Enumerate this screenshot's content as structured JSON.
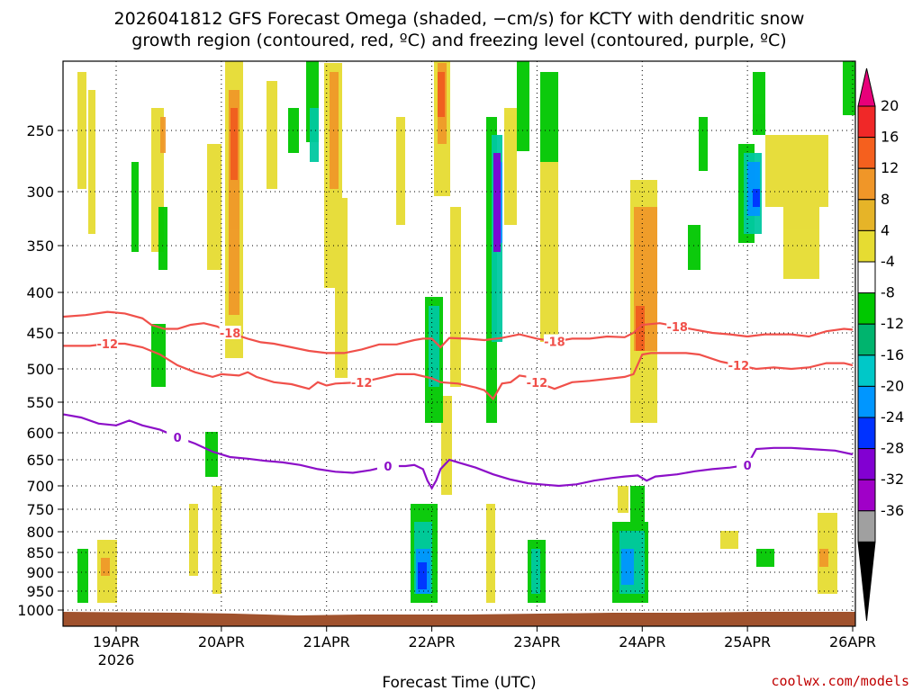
{
  "title_lines": [
    "2026041812 GFS Forecast Omega (shaded, −cm/s) for KCTY with dendritic snow",
    "growth region (contoured, red, ºC) and freezing level (contoured, purple, ºC)"
  ],
  "xlabel": "Forecast Time (UTC)",
  "credit": "coolwx.com/models",
  "chart_data": {
    "type": "heatmap",
    "x_ticks": [
      {
        "label": "19APR",
        "sub": "2026",
        "t": 12
      },
      {
        "label": "20APR",
        "sub": "",
        "t": 36
      },
      {
        "label": "21APR",
        "sub": "",
        "t": 60
      },
      {
        "label": "22APR",
        "sub": "",
        "t": 84
      },
      {
        "label": "23APR",
        "sub": "",
        "t": 108
      },
      {
        "label": "24APR",
        "sub": "",
        "t": 132
      },
      {
        "label": "25APR",
        "sub": "",
        "t": 156
      },
      {
        "label": "26APR",
        "sub": "",
        "t": 180
      }
    ],
    "x_range_hours": [
      0,
      180
    ],
    "y_pressure_levels": [
      250,
      300,
      350,
      400,
      450,
      500,
      550,
      600,
      650,
      700,
      750,
      800,
      850,
      900,
      950,
      1000
    ],
    "y_grid": true,
    "colorbar": {
      "labels": [
        "20",
        "16",
        "12",
        "8",
        "4",
        "-4",
        "-8",
        "-12",
        "-16",
        "-20",
        "-24",
        "-28",
        "-32",
        "-36"
      ],
      "colors": [
        "#e8007a",
        "#f02828",
        "#f5601e",
        "#f09628",
        "#e6b428",
        "#e6dc32",
        "#ffffff",
        "#00c800",
        "#00b46e",
        "#00c8c8",
        "#0096ff",
        "#0032ff",
        "#8200d2",
        "#a000c8",
        "#a0a0a0",
        "#000000"
      ]
    },
    "contours": [
      {
        "name": "-18",
        "color": "#f0504a",
        "label_hours": [
          40,
          112,
          139
        ],
        "points": [
          [
            0,
            430
          ],
          [
            5,
            428
          ],
          [
            10,
            424
          ],
          [
            14,
            426
          ],
          [
            18,
            432
          ],
          [
            20,
            440
          ],
          [
            23,
            445
          ],
          [
            26,
            445
          ],
          [
            29,
            440
          ],
          [
            32,
            438
          ],
          [
            35,
            442
          ],
          [
            38,
            450
          ],
          [
            42,
            458
          ],
          [
            45,
            463
          ],
          [
            48,
            465
          ],
          [
            52,
            470
          ],
          [
            56,
            475
          ],
          [
            60,
            478
          ],
          [
            64,
            478
          ],
          [
            68,
            473
          ],
          [
            72,
            466
          ],
          [
            76,
            466
          ],
          [
            80,
            460
          ],
          [
            82,
            458
          ],
          [
            84,
            458
          ],
          [
            86,
            470
          ],
          [
            88,
            457
          ],
          [
            92,
            458
          ],
          [
            96,
            460
          ],
          [
            100,
            457
          ],
          [
            104,
            452
          ],
          [
            108,
            458
          ],
          [
            112,
            462
          ],
          [
            116,
            458
          ],
          [
            120,
            458
          ],
          [
            124,
            455
          ],
          [
            128,
            456
          ],
          [
            130,
            450
          ],
          [
            132,
            440
          ],
          [
            136,
            438
          ],
          [
            140,
            442
          ],
          [
            144,
            446
          ],
          [
            148,
            450
          ],
          [
            152,
            452
          ],
          [
            156,
            455
          ],
          [
            160,
            452
          ],
          [
            166,
            452
          ],
          [
            170,
            455
          ],
          [
            174,
            448
          ],
          [
            178,
            445
          ],
          [
            180,
            446
          ]
        ]
      },
      {
        "name": "-12",
        "color": "#f0504a",
        "label_hours": [
          12,
          66,
          108,
          155
        ],
        "points": [
          [
            0,
            468
          ],
          [
            6,
            468
          ],
          [
            10,
            465
          ],
          [
            14,
            465
          ],
          [
            18,
            470
          ],
          [
            22,
            480
          ],
          [
            26,
            495
          ],
          [
            30,
            505
          ],
          [
            34,
            512
          ],
          [
            36,
            508
          ],
          [
            40,
            510
          ],
          [
            42,
            505
          ],
          [
            44,
            512
          ],
          [
            48,
            520
          ],
          [
            52,
            523
          ],
          [
            56,
            530
          ],
          [
            58,
            520
          ],
          [
            60,
            525
          ],
          [
            62,
            522
          ],
          [
            68,
            520
          ],
          [
            72,
            514
          ],
          [
            76,
            508
          ],
          [
            80,
            508
          ],
          [
            84,
            514
          ],
          [
            86,
            520
          ],
          [
            90,
            522
          ],
          [
            94,
            528
          ],
          [
            96,
            532
          ],
          [
            98,
            545
          ],
          [
            100,
            522
          ],
          [
            102,
            520
          ],
          [
            104,
            510
          ],
          [
            106,
            512
          ],
          [
            108,
            520
          ],
          [
            112,
            530
          ],
          [
            116,
            520
          ],
          [
            120,
            518
          ],
          [
            124,
            515
          ],
          [
            128,
            512
          ],
          [
            130,
            508
          ],
          [
            132,
            480
          ],
          [
            134,
            478
          ],
          [
            138,
            478
          ],
          [
            142,
            478
          ],
          [
            145,
            480
          ],
          [
            150,
            490
          ],
          [
            154,
            495
          ],
          [
            158,
            500
          ],
          [
            162,
            498
          ],
          [
            166,
            500
          ],
          [
            170,
            498
          ],
          [
            174,
            492
          ],
          [
            178,
            492
          ],
          [
            180,
            495
          ]
        ]
      },
      {
        "name": "0",
        "color": "#8c0fc8",
        "label_hours": [
          26,
          74,
          155
        ],
        "points": [
          [
            0,
            570
          ],
          [
            4,
            575
          ],
          [
            8,
            585
          ],
          [
            12,
            588
          ],
          [
            15,
            580
          ],
          [
            18,
            588
          ],
          [
            22,
            595
          ],
          [
            26,
            608
          ],
          [
            30,
            620
          ],
          [
            34,
            635
          ],
          [
            38,
            645
          ],
          [
            42,
            648
          ],
          [
            46,
            652
          ],
          [
            50,
            655
          ],
          [
            54,
            660
          ],
          [
            58,
            668
          ],
          [
            62,
            673
          ],
          [
            66,
            675
          ],
          [
            70,
            670
          ],
          [
            74,
            662
          ],
          [
            78,
            662
          ],
          [
            80,
            660
          ],
          [
            82,
            668
          ],
          [
            83,
            690
          ],
          [
            84,
            705
          ],
          [
            85,
            690
          ],
          [
            86,
            668
          ],
          [
            88,
            650
          ],
          [
            90,
            655
          ],
          [
            94,
            665
          ],
          [
            98,
            678
          ],
          [
            102,
            688
          ],
          [
            106,
            695
          ],
          [
            110,
            698
          ],
          [
            113,
            700
          ],
          [
            117,
            697
          ],
          [
            121,
            690
          ],
          [
            125,
            685
          ],
          [
            128,
            682
          ],
          [
            131,
            680
          ],
          [
            133,
            690
          ],
          [
            135,
            682
          ],
          [
            140,
            678
          ],
          [
            144,
            672
          ],
          [
            148,
            668
          ],
          [
            152,
            665
          ],
          [
            156,
            660
          ],
          [
            158,
            630
          ],
          [
            162,
            628
          ],
          [
            166,
            628
          ],
          [
            170,
            630
          ],
          [
            176,
            633
          ],
          [
            180,
            640
          ]
        ]
      }
    ]
  }
}
